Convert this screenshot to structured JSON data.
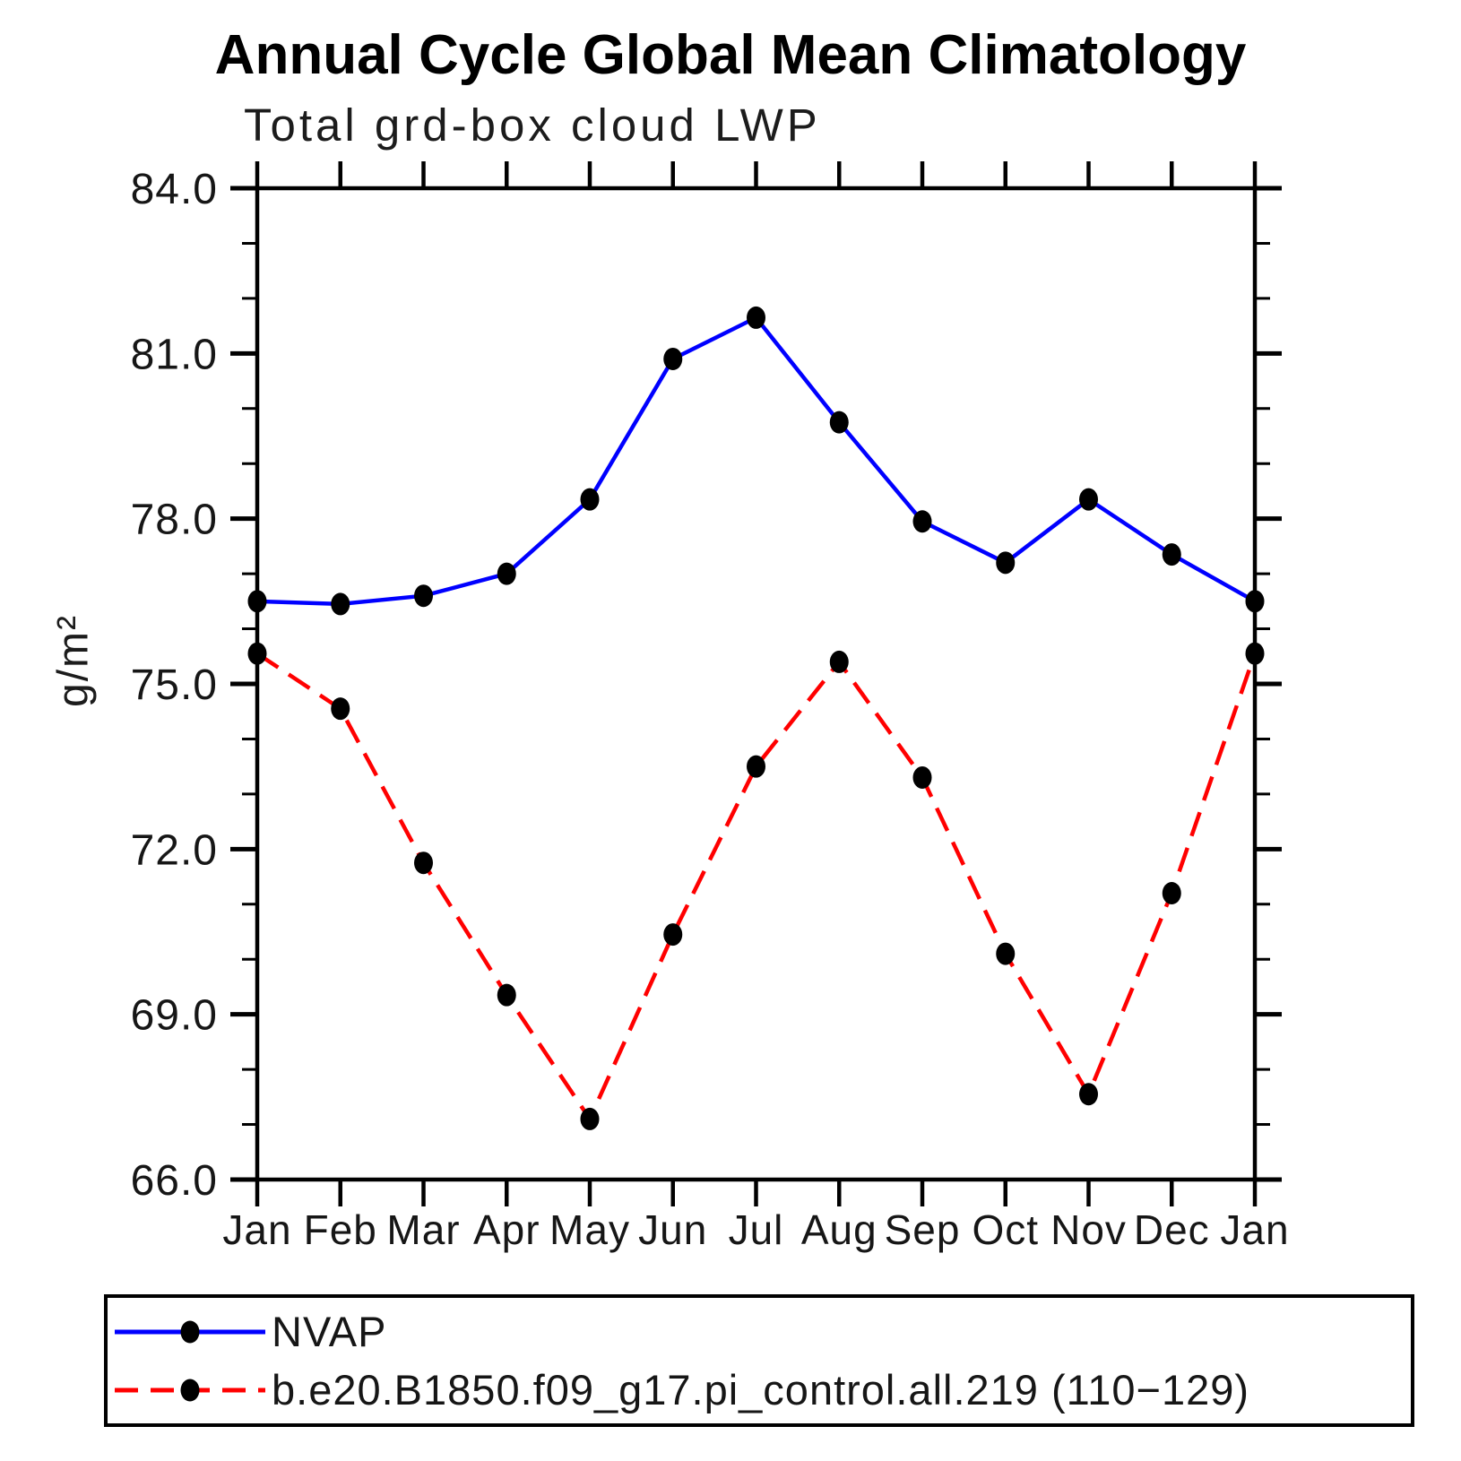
{
  "chart_data": {
    "type": "line",
    "title": "Annual Cycle Global Mean Climatology",
    "subtitle": "Total grd-box cloud LWP",
    "xlabel": "",
    "ylabel": "g/m²",
    "categories": [
      "Jan",
      "Feb",
      "Mar",
      "Apr",
      "May",
      "Jun",
      "Jul",
      "Aug",
      "Sep",
      "Oct",
      "Nov",
      "Dec",
      "Jan"
    ],
    "ylim": [
      66.0,
      84.0
    ],
    "ytick_labels": [
      "84.0",
      "81.0",
      "78.0",
      "75.0",
      "72.0",
      "69.0",
      "66.0"
    ],
    "ytick_major_step": 3.0,
    "ytick_minor_step": 1.0,
    "grid": false,
    "legend_position": "bottom",
    "axis_color": "#000000",
    "marker_color": "#000000",
    "series": [
      {
        "name": "NVAP",
        "color": "#0000ff",
        "style": "solid",
        "marker": "filled-circle",
        "values": [
          76.5,
          76.45,
          76.6,
          77.0,
          78.35,
          80.9,
          81.65,
          79.75,
          77.95,
          77.2,
          78.35,
          77.35,
          76.5
        ]
      },
      {
        "name": "b.e20.B1850.f09_g17.pi_control.all.219 (110−129)",
        "color": "#ff0000",
        "style": "dashed",
        "marker": "filled-circle",
        "values": [
          75.55,
          74.55,
          71.75,
          69.35,
          67.1,
          70.45,
          73.5,
          75.4,
          73.3,
          70.1,
          67.55,
          71.2,
          75.55
        ]
      }
    ]
  }
}
